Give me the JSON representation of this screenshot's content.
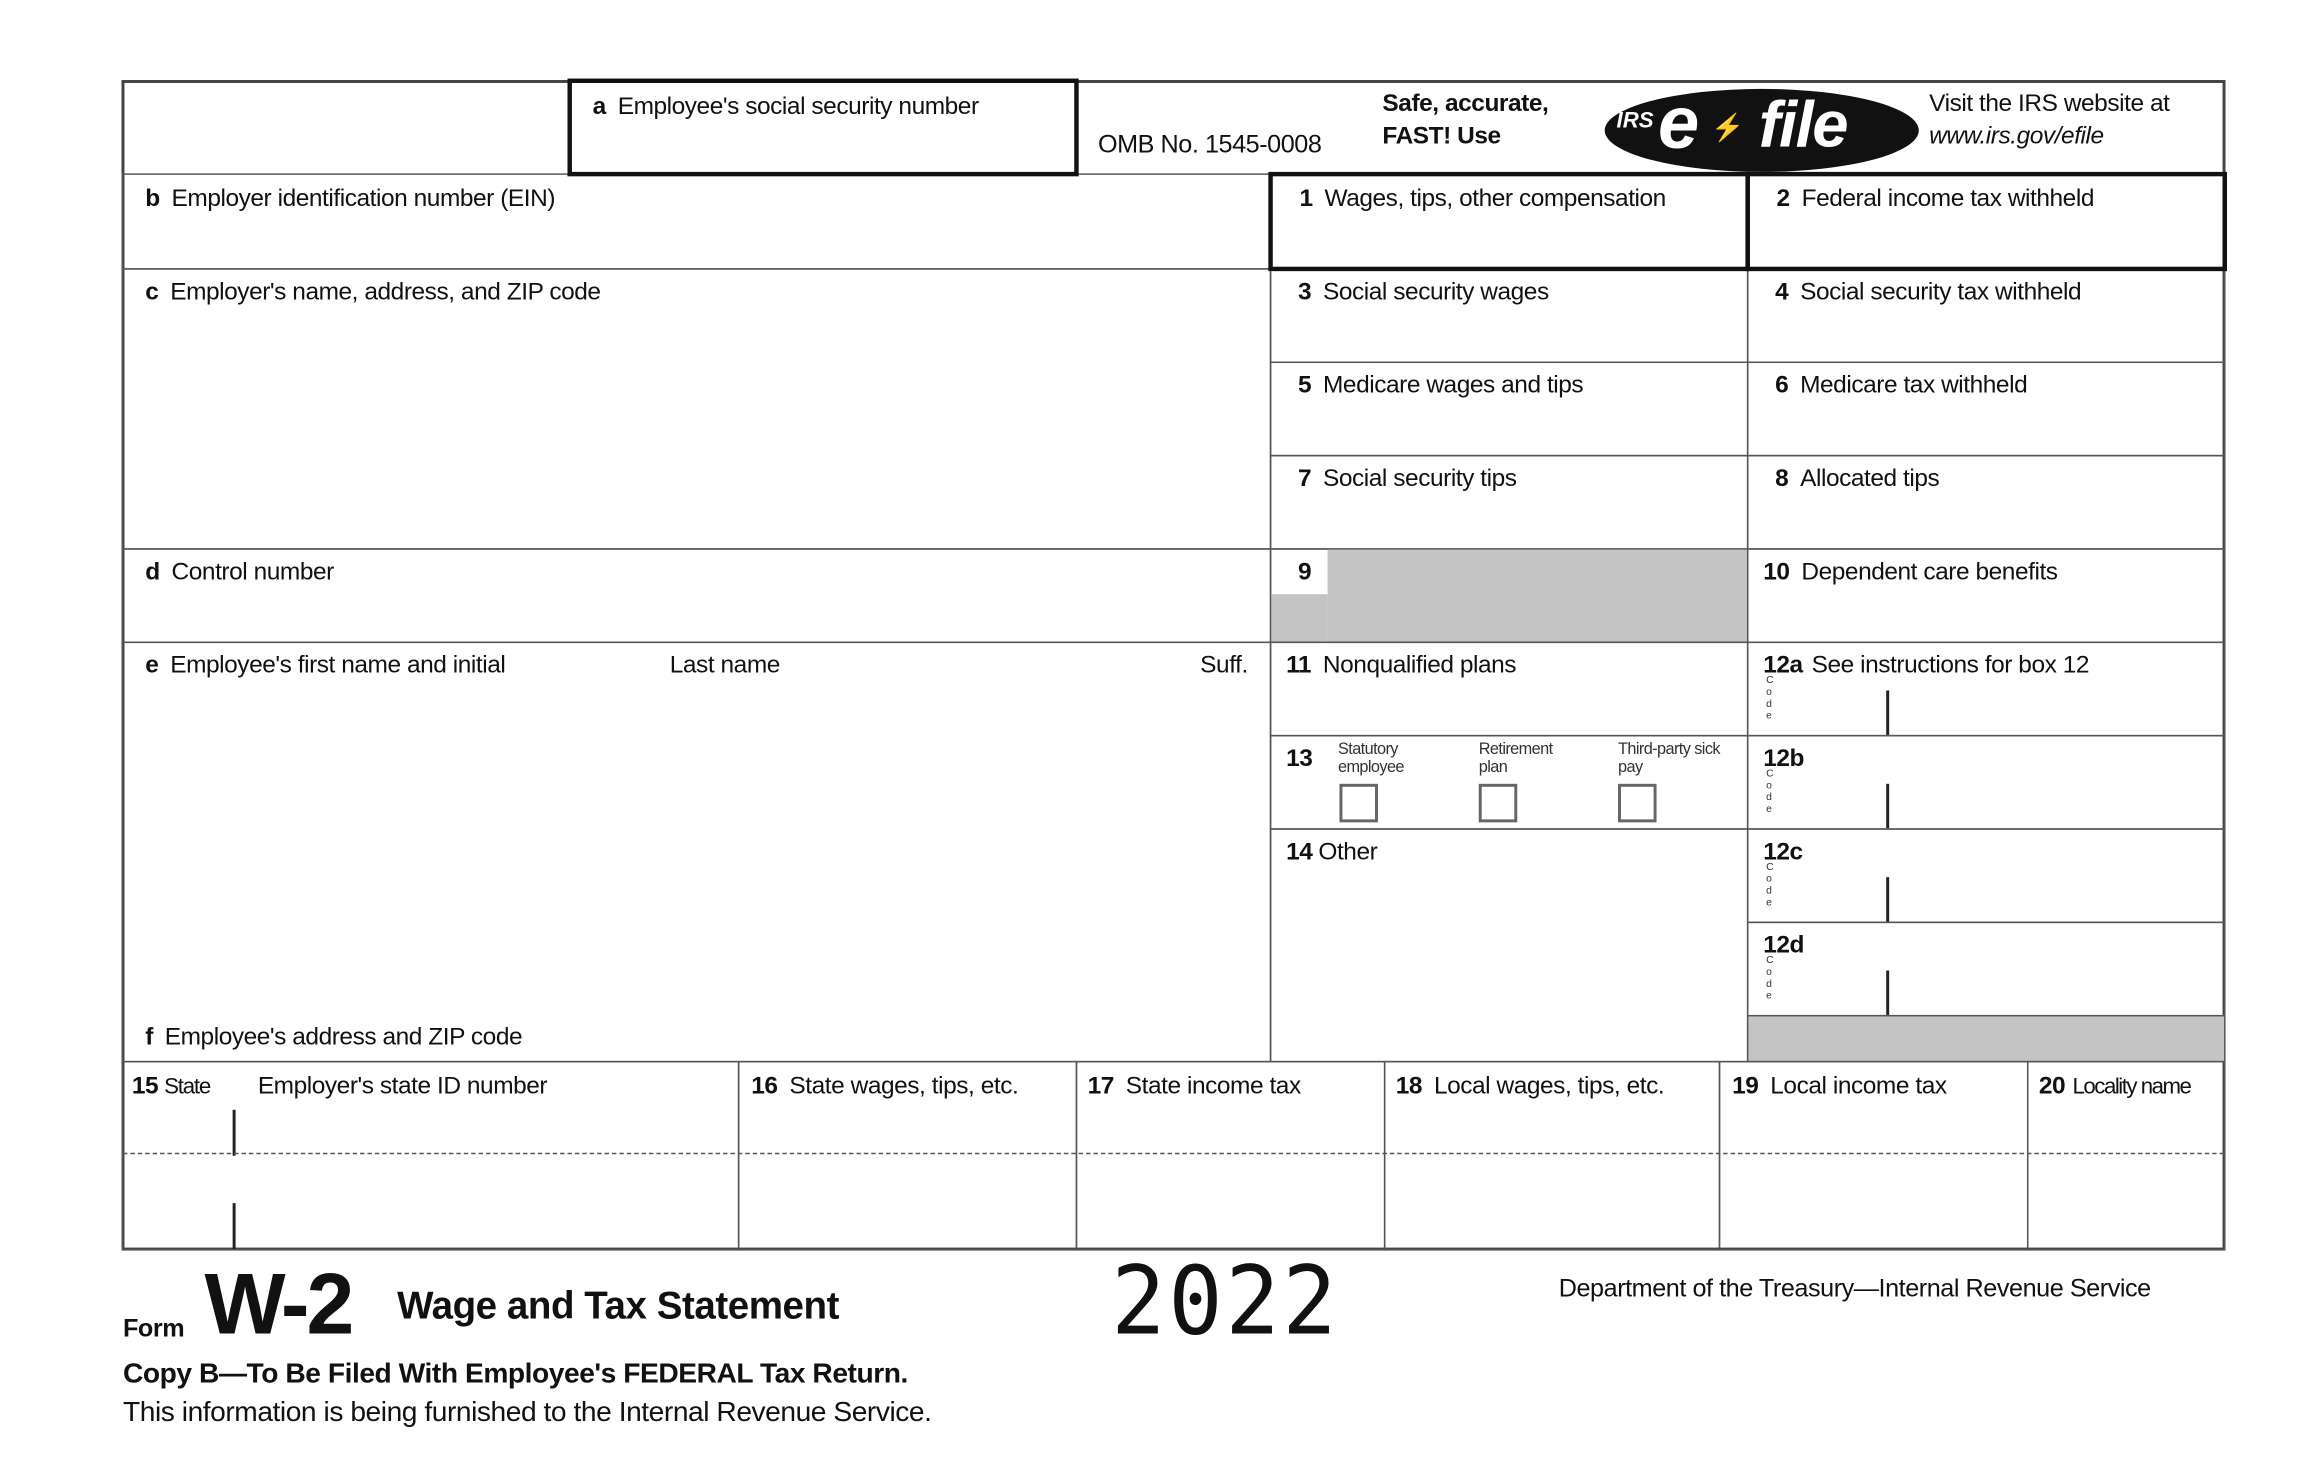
{
  "header": {
    "box_a": "Employee's social security number",
    "box_a_letter": "a",
    "omb": "OMB No. 1545-0008",
    "efile_promo": [
      "Safe, accurate,",
      "FAST! Use"
    ],
    "efile_logo": {
      "irs": "IRS",
      "e": "e",
      "file": "file"
    },
    "visit": [
      "Visit the IRS website at",
      "www.irs.gov/efile"
    ]
  },
  "left": {
    "b": {
      "letter": "b",
      "label": "Employer identification number (EIN)"
    },
    "c": {
      "letter": "c",
      "label": "Employer's name, address, and ZIP code"
    },
    "d": {
      "letter": "d",
      "label": "Control number"
    },
    "e": {
      "letter": "e",
      "label": "Employee's first name and initial",
      "last": "Last name",
      "suff": "Suff."
    },
    "f": {
      "letter": "f",
      "label": "Employee's address and ZIP code"
    }
  },
  "boxes": {
    "b1": {
      "num": "1",
      "label": "Wages, tips, other compensation"
    },
    "b2": {
      "num": "2",
      "label": "Federal income tax withheld"
    },
    "b3": {
      "num": "3",
      "label": "Social security wages"
    },
    "b4": {
      "num": "4",
      "label": "Social security tax withheld"
    },
    "b5": {
      "num": "5",
      "label": "Medicare wages and tips"
    },
    "b6": {
      "num": "6",
      "label": "Medicare tax withheld"
    },
    "b7": {
      "num": "7",
      "label": "Social security tips"
    },
    "b8": {
      "num": "8",
      "label": "Allocated tips"
    },
    "b9": {
      "num": "9"
    },
    "b10": {
      "num": "10",
      "label": "Dependent care benefits"
    },
    "b11": {
      "num": "11",
      "label": "Nonqualified plans"
    },
    "b12a": {
      "num": "12a",
      "label": "See instructions for box 12"
    },
    "b12b": {
      "num": "12b"
    },
    "b12c": {
      "num": "12c"
    },
    "b12d": {
      "num": "12d"
    },
    "code_label": "C o d e",
    "b13": {
      "num": "13",
      "options": [
        "Statutory employee",
        "Retirement plan",
        "Third-party sick pay"
      ]
    },
    "b14": {
      "num": "14",
      "label": "Other"
    },
    "b15": {
      "num": "15",
      "label": "State",
      "label2": "Employer's state ID number"
    },
    "b16": {
      "num": "16",
      "label": "State wages, tips, etc."
    },
    "b17": {
      "num": "17",
      "label": "State income tax"
    },
    "b18": {
      "num": "18",
      "label": "Local wages, tips, etc."
    },
    "b19": {
      "num": "19",
      "label": "Local income tax"
    },
    "b20": {
      "num": "20",
      "label": "Locality name"
    }
  },
  "footer": {
    "form_word": "Form",
    "form_name": "W-2",
    "title": "Wage and Tax Statement",
    "year": "2022",
    "dept": "Department of the Treasury—Internal Revenue Service",
    "copy": "Copy B—To Be Filed With Employee's FEDERAL Tax Return.",
    "info": "This information is being furnished to the Internal Revenue Service."
  }
}
